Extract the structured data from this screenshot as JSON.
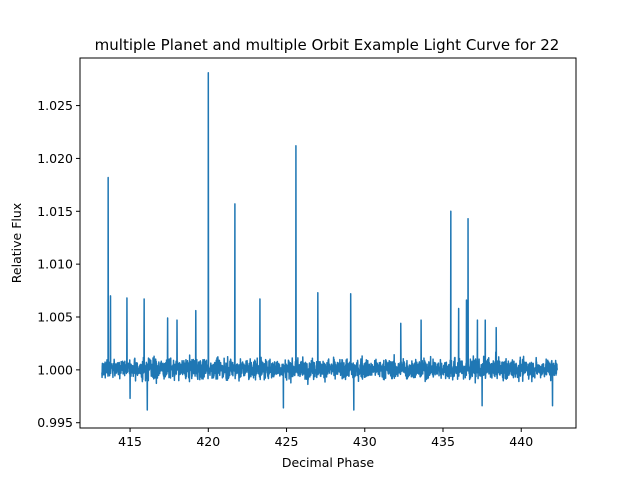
{
  "chart_data": {
    "type": "line",
    "title": "multiple Planet and multiple Orbit Example Light Curve for 22",
    "xlabel": "Decimal Phase",
    "ylabel": "Relative Flux",
    "xlim": [
      411.8,
      443.5
    ],
    "ylim": [
      0.9945,
      1.0295
    ],
    "xticks": [
      415,
      420,
      425,
      430,
      435,
      440
    ],
    "yticks": [
      0.995,
      1.0,
      1.005,
      1.01,
      1.015,
      1.02,
      1.025
    ],
    "ytick_labels": [
      "0.995",
      "1.000",
      "1.005",
      "1.010",
      "1.015",
      "1.020",
      "1.025"
    ],
    "grid": false,
    "line_color": "#1f77b4",
    "series": [
      {
        "x_range": [
          413.2,
          442.3
        ],
        "baseline": 1.0,
        "noise_band": [
          0.9975,
          1.0027
        ],
        "spikes": [
          {
            "x": 413.6,
            "y": 1.0182
          },
          {
            "x": 413.75,
            "y": 1.007
          },
          {
            "x": 414.8,
            "y": 1.0068
          },
          {
            "x": 415.9,
            "y": 1.0067
          },
          {
            "x": 417.4,
            "y": 1.0049
          },
          {
            "x": 418.0,
            "y": 1.0047
          },
          {
            "x": 419.2,
            "y": 1.0056
          },
          {
            "x": 420.0,
            "y": 1.0281
          },
          {
            "x": 421.7,
            "y": 1.0157
          },
          {
            "x": 423.3,
            "y": 1.0067
          },
          {
            "x": 425.6,
            "y": 1.0212
          },
          {
            "x": 427.0,
            "y": 1.0073
          },
          {
            "x": 429.1,
            "y": 1.0072
          },
          {
            "x": 432.3,
            "y": 1.0044
          },
          {
            "x": 433.6,
            "y": 1.0047
          },
          {
            "x": 435.5,
            "y": 1.015
          },
          {
            "x": 436.0,
            "y": 1.0058
          },
          {
            "x": 436.5,
            "y": 1.0066
          },
          {
            "x": 436.6,
            "y": 1.0143
          },
          {
            "x": 437.2,
            "y": 1.0047
          },
          {
            "x": 437.7,
            "y": 1.0047
          },
          {
            "x": 438.4,
            "y": 1.004
          }
        ],
        "dips": [
          {
            "x": 415.0,
            "y": 0.9973
          },
          {
            "x": 416.1,
            "y": 0.9962
          },
          {
            "x": 424.8,
            "y": 0.9964
          },
          {
            "x": 429.3,
            "y": 0.9962
          },
          {
            "x": 437.5,
            "y": 0.9966
          },
          {
            "x": 442.0,
            "y": 0.9966
          }
        ]
      }
    ]
  }
}
